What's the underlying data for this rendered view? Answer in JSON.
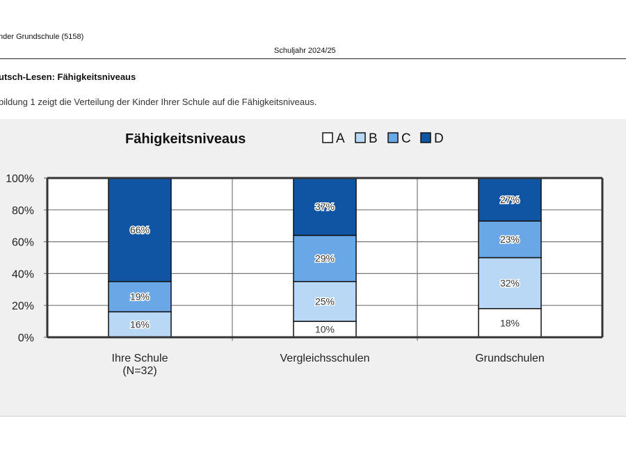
{
  "header": {
    "school": "nder Grundschule (5158)",
    "year": "Schuljahr 2024/25"
  },
  "section_title": "utsch-Lesen: Fähigkeitsniveaus",
  "intro": "bildung 1 zeigt die Verteilung der Kinder Ihrer Schule auf die Fähigkeitsniveaus.",
  "chart_data": {
    "type": "bar",
    "stacked": true,
    "title": "Fähigkeitsniveaus",
    "categories": [
      "Ihre Schule\n(N=32)",
      "Vergleichsschulen",
      "Grundschulen"
    ],
    "series": [
      {
        "name": "A",
        "color": "#ffffff",
        "values": [
          0,
          10,
          18
        ]
      },
      {
        "name": "B",
        "color": "#b8d8f6",
        "values": [
          16,
          25,
          32
        ]
      },
      {
        "name": "C",
        "color": "#6aa7e6",
        "values": [
          19,
          29,
          23
        ]
      },
      {
        "name": "D",
        "color": "#1055a4",
        "values": [
          66,
          37,
          27
        ]
      }
    ],
    "yticks": [
      "0%",
      "20%",
      "40%",
      "60%",
      "80%",
      "100%"
    ],
    "ylim": [
      0,
      100
    ],
    "legend": "top-right",
    "grid": true,
    "xlabel": "",
    "ylabel": ""
  }
}
